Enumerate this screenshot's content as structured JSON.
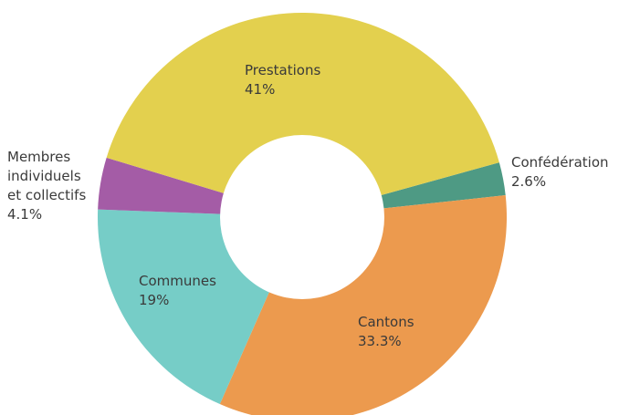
{
  "chart_data": {
    "type": "pie",
    "variant": "donut",
    "title": "",
    "slices": [
      {
        "name": "Confédération",
        "value": 2.6,
        "value_label": "2.6%",
        "color": "#4e9a84"
      },
      {
        "name": "Cantons",
        "value": 33.3,
        "value_label": "33.3%",
        "color": "#ec9a4e"
      },
      {
        "name": "Communes",
        "value": 19,
        "value_label": "19%",
        "color": "#76cdc7"
      },
      {
        "name": "Membres individuels et collectifs",
        "name_lines": [
          "Membres",
          "individuels",
          "et collectifs"
        ],
        "value": 4.1,
        "value_label": "4.1%",
        "color": "#a45ca6"
      },
      {
        "name": "Prestations",
        "value": 41,
        "value_label": "41%",
        "color": "#e3d04e"
      }
    ]
  }
}
